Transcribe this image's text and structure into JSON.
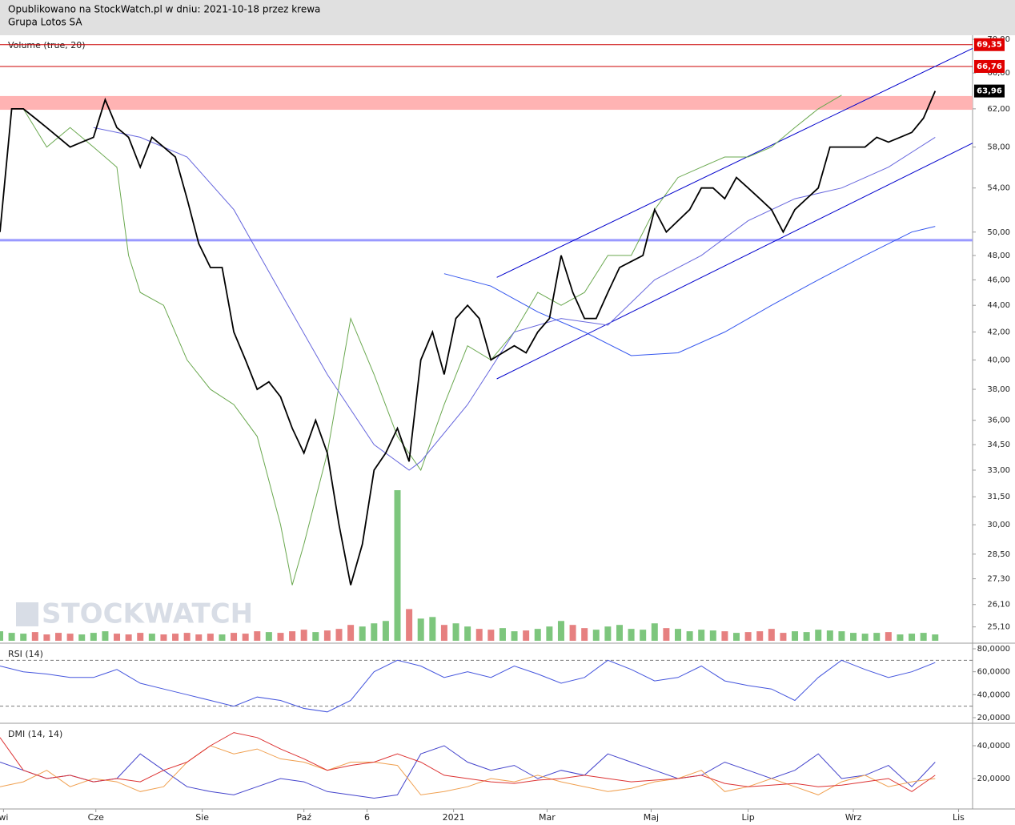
{
  "header": {
    "line1": "Opublikowano na StockWatch.pl w dniu: 2021-10-18 przez krewa",
    "line2": "Grupa Lotos SA"
  },
  "watermark": "STOCKWATCH",
  "chart_data": [
    {
      "type": "line",
      "title": "Volume (true, 20)",
      "log_scale": true,
      "ylim": [
        24.5,
        70.4
      ],
      "xlim": [
        0,
        83.2
      ],
      "yticks": [
        {
          "value": 25.1,
          "label": "25,10"
        },
        {
          "value": 26.1,
          "label": "26,10"
        },
        {
          "value": 27.3,
          "label": "27,30"
        },
        {
          "value": 28.5,
          "label": "28,50"
        },
        {
          "value": 30,
          "label": "30,00"
        },
        {
          "value": 31.5,
          "label": "31,50"
        },
        {
          "value": 33,
          "label": "33,00"
        },
        {
          "value": 34.5,
          "label": "34,50"
        },
        {
          "value": 36,
          "label": "36,00"
        },
        {
          "value": 38,
          "label": "38,00"
        },
        {
          "value": 40,
          "label": "40,00"
        },
        {
          "value": 42,
          "label": "42,00"
        },
        {
          "value": 44,
          "label": "44,00"
        },
        {
          "value": 46,
          "label": "46,00"
        },
        {
          "value": 48,
          "label": "48,00"
        },
        {
          "value": 50,
          "label": "50,00"
        },
        {
          "value": 54,
          "label": "54,00"
        },
        {
          "value": 58,
          "label": "58,00"
        },
        {
          "value": 62,
          "label": "62,00"
        },
        {
          "value": 66,
          "label": "66,00"
        },
        {
          "value": 70,
          "label": "70,00"
        }
      ],
      "xticks": [
        {
          "value": 0.3,
          "label": "wi"
        },
        {
          "value": 8.2,
          "label": "Cze"
        },
        {
          "value": 17.3,
          "label": "Sie"
        },
        {
          "value": 26,
          "label": "Paź"
        },
        {
          "value": 31.4,
          "label": "6"
        },
        {
          "value": 38.8,
          "label": "2021"
        },
        {
          "value": 46.8,
          "label": "Mar"
        },
        {
          "value": 55.7,
          "label": "Maj"
        },
        {
          "value": 64,
          "label": "Lip"
        },
        {
          "value": 73,
          "label": "Wrz"
        },
        {
          "value": 82,
          "label": "Lis"
        }
      ],
      "band": {
        "range": [
          61.9,
          63.4
        ],
        "color": "#ffb3b3"
      },
      "hlines": [
        {
          "value": 69.35,
          "color": "#cc0000"
        },
        {
          "value": 66.76,
          "color": "#cc0000"
        },
        {
          "value": 49.3,
          "color": "#9999ff"
        }
      ],
      "price_labels": [
        {
          "value": 69.35,
          "label": "69,35",
          "color": "#e00000"
        },
        {
          "value": 66.76,
          "label": "66,76",
          "color": "#e00000"
        },
        {
          "value": 63.96,
          "label": "63,96",
          "color": "#000000"
        }
      ],
      "channel": [
        {
          "x": [
            42.5,
            83.2
          ],
          "y": [
            46.2,
            68.9
          ],
          "color": "#0000cc"
        },
        {
          "x": [
            42.5,
            83.2
          ],
          "y": [
            38.7,
            58.4
          ],
          "color": "#0000cc"
        }
      ],
      "series": [
        {
          "color": "#6aa84f",
          "x": [
            2,
            4,
            6,
            8,
            10,
            11,
            12,
            14,
            16,
            18,
            20,
            22,
            24,
            25,
            26,
            28,
            30,
            32,
            34,
            36,
            38,
            40,
            42,
            44,
            46,
            48,
            50,
            52,
            54,
            56,
            58,
            60,
            62,
            64,
            66,
            68,
            70,
            72
          ],
          "values": [
            62,
            58,
            60,
            58,
            56,
            48,
            45,
            44,
            40,
            38,
            37,
            35,
            30,
            27,
            29,
            34,
            43,
            39,
            35,
            33,
            37,
            41,
            40,
            42,
            45,
            44,
            45,
            48,
            48,
            52,
            55,
            56,
            57,
            57,
            58,
            60,
            62,
            63.5
          ]
        },
        {
          "color": "#6666dd",
          "x": [
            8,
            12,
            16,
            20,
            24,
            28,
            32,
            35,
            36,
            40,
            44,
            48,
            52,
            56,
            60,
            64,
            68,
            72,
            76,
            80
          ],
          "values": [
            60,
            59,
            57,
            52,
            45,
            39,
            34.5,
            33,
            33.5,
            37,
            42,
            43,
            42.5,
            46,
            48,
            51,
            53,
            54,
            56,
            59
          ]
        },
        {
          "color": "#3355ee",
          "x": [
            38,
            42,
            46,
            50,
            54,
            58,
            62,
            66,
            70,
            74,
            78,
            80
          ],
          "values": [
            46.5,
            45.5,
            43.5,
            42,
            40.3,
            40.5,
            42,
            44,
            46,
            48,
            50,
            50.5
          ]
        },
        {
          "color": "#000000",
          "x": [
            0,
            1,
            2,
            3,
            4,
            5,
            6,
            7,
            8,
            9,
            10,
            11,
            12,
            13,
            14,
            15,
            16,
            17,
            18,
            19,
            20,
            21,
            22,
            23,
            24,
            25,
            26,
            27,
            28,
            29,
            30,
            31,
            32,
            33,
            34,
            35,
            36,
            37,
            38,
            39,
            40,
            41,
            42,
            43,
            44,
            45,
            46,
            47,
            48,
            49,
            50,
            51,
            52,
            53,
            54,
            55,
            56,
            57,
            58,
            59,
            60,
            61,
            62,
            63,
            64,
            65,
            66,
            67,
            68,
            69,
            70,
            71,
            72,
            73,
            74,
            75,
            76,
            77,
            78,
            79,
            80
          ],
          "values": [
            50,
            62,
            62,
            61,
            60,
            59,
            58,
            58.5,
            59,
            63,
            60,
            59,
            56,
            59,
            58,
            57,
            53,
            49,
            47,
            47,
            42,
            40,
            38,
            38.5,
            37.5,
            35.5,
            34,
            36,
            34,
            30,
            27,
            29,
            33,
            34,
            35.5,
            33.5,
            40,
            42,
            39,
            43,
            44,
            43,
            40,
            40.5,
            41,
            40.5,
            42,
            43,
            48,
            45,
            43,
            43,
            45,
            47,
            47.5,
            48,
            52,
            50,
            51,
            52,
            54,
            54,
            53,
            55,
            54,
            53,
            52,
            50,
            52,
            53,
            54,
            58,
            58,
            58,
            58,
            59,
            58.5,
            59,
            59.5,
            61,
            63.96
          ]
        }
      ],
      "volume": {
        "values": [
          12,
          10,
          9,
          11,
          8,
          10,
          9,
          8,
          10,
          12,
          9,
          8,
          10,
          9,
          8,
          9,
          10,
          8,
          9,
          8,
          10,
          9,
          12,
          11,
          10,
          12,
          14,
          11,
          13,
          15,
          20,
          18,
          22,
          25,
          190,
          40,
          28,
          30,
          20,
          22,
          18,
          15,
          14,
          16,
          12,
          13,
          15,
          18,
          25,
          20,
          16,
          14,
          18,
          20,
          15,
          14,
          22,
          16,
          15,
          12,
          14,
          13,
          12,
          10,
          11,
          12,
          15,
          10,
          12,
          11,
          14,
          13,
          12,
          10,
          9,
          10,
          11,
          8,
          9,
          10,
          8
        ],
        "up_color": "#5cb85c",
        "down_color": "#e06060"
      }
    },
    {
      "type": "line",
      "title": "RSI (14)",
      "ylim": [
        15.1,
        83.5
      ],
      "xlim": [
        0,
        83.2
      ],
      "yticks": [
        {
          "value": 20,
          "label": "20,0000"
        },
        {
          "value": 40,
          "label": "40,0000"
        },
        {
          "value": 60,
          "label": "60,0000"
        },
        {
          "value": 80,
          "label": "80,0000"
        }
      ],
      "levels": [
        70,
        30
      ],
      "series": [
        {
          "color": "#4455dd",
          "x": [
            0,
            2,
            4,
            6,
            8,
            10,
            12,
            14,
            16,
            18,
            20,
            22,
            24,
            26,
            28,
            30,
            32,
            34,
            36,
            38,
            40,
            42,
            44,
            46,
            48,
            50,
            52,
            54,
            56,
            58,
            60,
            62,
            64,
            66,
            68,
            70,
            72,
            74,
            76,
            78,
            80
          ],
          "values": [
            65,
            60,
            58,
            55,
            55,
            62,
            50,
            45,
            40,
            35,
            30,
            38,
            35,
            28,
            25,
            35,
            60,
            70,
            65,
            55,
            60,
            55,
            65,
            58,
            50,
            55,
            70,
            62,
            52,
            55,
            65,
            52,
            48,
            45,
            35,
            55,
            70,
            62,
            55,
            60,
            68
          ]
        }
      ]
    },
    {
      "type": "line",
      "title": "DMI (14, 14)",
      "ylim": [
        2.4,
        52.7
      ],
      "xlim": [
        0,
        83.2
      ],
      "yticks": [
        {
          "value": 20,
          "label": "20,0000"
        },
        {
          "value": 40,
          "label": "40,0000"
        }
      ],
      "series": [
        {
          "color": "#4444cc",
          "x": [
            0,
            2,
            4,
            6,
            8,
            10,
            12,
            14,
            16,
            18,
            20,
            22,
            24,
            26,
            28,
            30,
            32,
            34,
            36,
            38,
            40,
            42,
            44,
            46,
            48,
            50,
            52,
            54,
            56,
            58,
            60,
            62,
            64,
            66,
            68,
            70,
            72,
            74,
            76,
            78,
            80
          ],
          "values": [
            30,
            25,
            20,
            22,
            18,
            20,
            35,
            25,
            15,
            12,
            10,
            15,
            20,
            18,
            12,
            10,
            8,
            10,
            35,
            40,
            30,
            25,
            28,
            20,
            25,
            22,
            35,
            30,
            25,
            20,
            22,
            30,
            25,
            20,
            25,
            35,
            20,
            22,
            28,
            15,
            30
          ]
        },
        {
          "color": "#f0a050",
          "x": [
            0,
            2,
            4,
            6,
            8,
            10,
            12,
            14,
            16,
            18,
            20,
            22,
            24,
            26,
            28,
            30,
            32,
            34,
            36,
            38,
            40,
            42,
            44,
            46,
            48,
            50,
            52,
            54,
            56,
            58,
            60,
            62,
            64,
            66,
            68,
            70,
            72,
            74,
            76,
            78,
            80
          ],
          "values": [
            15,
            18,
            25,
            15,
            20,
            18,
            12,
            15,
            30,
            40,
            35,
            38,
            32,
            30,
            25,
            30,
            30,
            28,
            10,
            12,
            15,
            20,
            18,
            22,
            18,
            15,
            12,
            14,
            18,
            20,
            25,
            12,
            15,
            20,
            15,
            10,
            18,
            22,
            15,
            18,
            20
          ]
        },
        {
          "color": "#dd3333",
          "x": [
            0,
            2,
            4,
            6,
            8,
            10,
            12,
            14,
            16,
            18,
            20,
            22,
            24,
            26,
            28,
            30,
            32,
            34,
            36,
            38,
            40,
            42,
            44,
            46,
            48,
            50,
            52,
            54,
            56,
            58,
            60,
            62,
            64,
            66,
            68,
            70,
            72,
            74,
            76,
            78,
            80
          ],
          "values": [
            45,
            25,
            20,
            22,
            18,
            20,
            18,
            25,
            30,
            40,
            48,
            45,
            38,
            32,
            25,
            28,
            30,
            35,
            30,
            22,
            20,
            18,
            17,
            19,
            20,
            22,
            20,
            18,
            19,
            20,
            22,
            17,
            15,
            16,
            17,
            15,
            16,
            18,
            20,
            12,
            22
          ]
        }
      ]
    }
  ]
}
